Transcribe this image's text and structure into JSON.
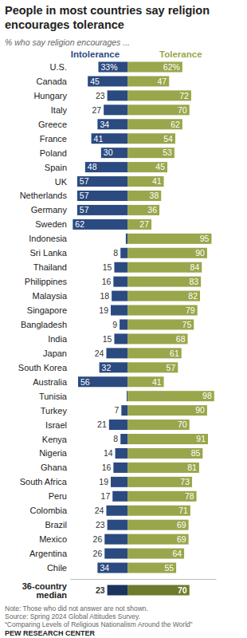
{
  "chart_data": {
    "type": "bar",
    "orientation": "horizontal",
    "data_labels": true,
    "tick_labels": false,
    "title": "People in most countries say religion encourages tolerance",
    "subtitle": "% who say religion encourages ...",
    "categories": [
      "U.S.",
      "Canada",
      "Hungary",
      "Italy",
      "Greece",
      "France",
      "Poland",
      "Spain",
      "UK",
      "Netherlands",
      "Germany",
      "Sweden",
      "Indonesia",
      "Sri Lanka",
      "Thailand",
      "Philippines",
      "Malaysia",
      "Singapore",
      "Bangladesh",
      "India",
      "Japan",
      "South Korea",
      "Australia",
      "Tunisia",
      "Turkey",
      "Israel",
      "Kenya",
      "Nigeria",
      "Ghana",
      "South Africa",
      "Peru",
      "Colombia",
      "Brazil",
      "Mexico",
      "Argentina",
      "Chile",
      "36-country median"
    ],
    "xlim": [
      -65,
      100
    ],
    "series": [
      {
        "name": "Intolerance",
        "color": "#2b4a80",
        "values": [
          33,
          45,
          23,
          27,
          34,
          41,
          30,
          48,
          57,
          57,
          57,
          62,
          2,
          8,
          15,
          16,
          18,
          19,
          9,
          15,
          24,
          32,
          56,
          1,
          7,
          21,
          8,
          14,
          16,
          19,
          17,
          24,
          23,
          26,
          26,
          34,
          23
        ],
        "value_labels": [
          "33%",
          "45",
          "23",
          "27",
          "34",
          "41",
          "30",
          "48",
          "57",
          "57",
          "57",
          "62",
          null,
          "8",
          "15",
          "16",
          "18",
          "19",
          "9",
          "15",
          "24",
          "32",
          "56",
          null,
          "7",
          "21",
          "8",
          "14",
          "16",
          "19",
          "17",
          "24",
          "23",
          "26",
          "26",
          "34",
          "23"
        ],
        "colors": [
          "#2b4a80",
          "#2b4a80",
          "#2b4a80",
          "#2b4a80",
          "#2b4a80",
          "#2b4a80",
          "#2b4a80",
          "#2b4a80",
          "#2b4a80",
          "#2b4a80",
          "#2b4a80",
          "#2b4a80",
          "#2b4a80",
          "#2b4a80",
          "#2b4a80",
          "#2b4a80",
          "#2b4a80",
          "#2b4a80",
          "#2b4a80",
          "#2b4a80",
          "#2b4a80",
          "#2b4a80",
          "#2b4a80",
          "#2b4a80",
          "#2b4a80",
          "#2b4a80",
          "#2b4a80",
          "#2b4a80",
          "#2b4a80",
          "#2b4a80",
          "#2b4a80",
          "#2b4a80",
          "#2b4a80",
          "#2b4a80",
          "#2b4a80",
          "#2b4a80",
          "#1b335e"
        ]
      },
      {
        "name": "Tolerance",
        "color": "#9aa64b",
        "values": [
          62,
          47,
          72,
          70,
          62,
          54,
          53,
          45,
          41,
          38,
          36,
          27,
          95,
          90,
          84,
          83,
          82,
          79,
          75,
          68,
          61,
          57,
          41,
          98,
          90,
          70,
          91,
          85,
          81,
          73,
          78,
          71,
          69,
          69,
          64,
          55,
          70
        ],
        "value_labels": [
          "62%",
          "47",
          "72",
          "70",
          "62",
          "54",
          "53",
          "45",
          "41",
          "38",
          "36",
          "27",
          "95",
          "90",
          "84",
          "83",
          "82",
          "79",
          "75",
          "68",
          "61",
          "57",
          "41",
          "98",
          "90",
          "70",
          "91",
          "85",
          "81",
          "73",
          "78",
          "71",
          "69",
          "69",
          "64",
          "55",
          "70"
        ],
        "colors": [
          "#9aa64b",
          "#9aa64b",
          "#9aa64b",
          "#9aa64b",
          "#9aa64b",
          "#9aa64b",
          "#9aa64b",
          "#9aa64b",
          "#9aa64b",
          "#9aa64b",
          "#9aa64b",
          "#9aa64b",
          "#9aa64b",
          "#9aa64b",
          "#9aa64b",
          "#9aa64b",
          "#9aa64b",
          "#9aa64b",
          "#9aa64b",
          "#9aa64b",
          "#9aa64b",
          "#9aa64b",
          "#9aa64b",
          "#9aa64b",
          "#9aa64b",
          "#9aa64b",
          "#9aa64b",
          "#9aa64b",
          "#9aa64b",
          "#9aa64b",
          "#9aa64b",
          "#9aa64b",
          "#9aa64b",
          "#9aa64b",
          "#9aa64b",
          "#9aa64b",
          "#6f7a2c"
        ]
      }
    ],
    "notes": [
      "Note: Those who did not answer are not shown.",
      "Source: Spring 2024 Global Attitudes Survey.",
      "“Comparing Levels of Religious Nationalism Around the World”"
    ],
    "credit": "PEW RESEARCH CENTER"
  }
}
